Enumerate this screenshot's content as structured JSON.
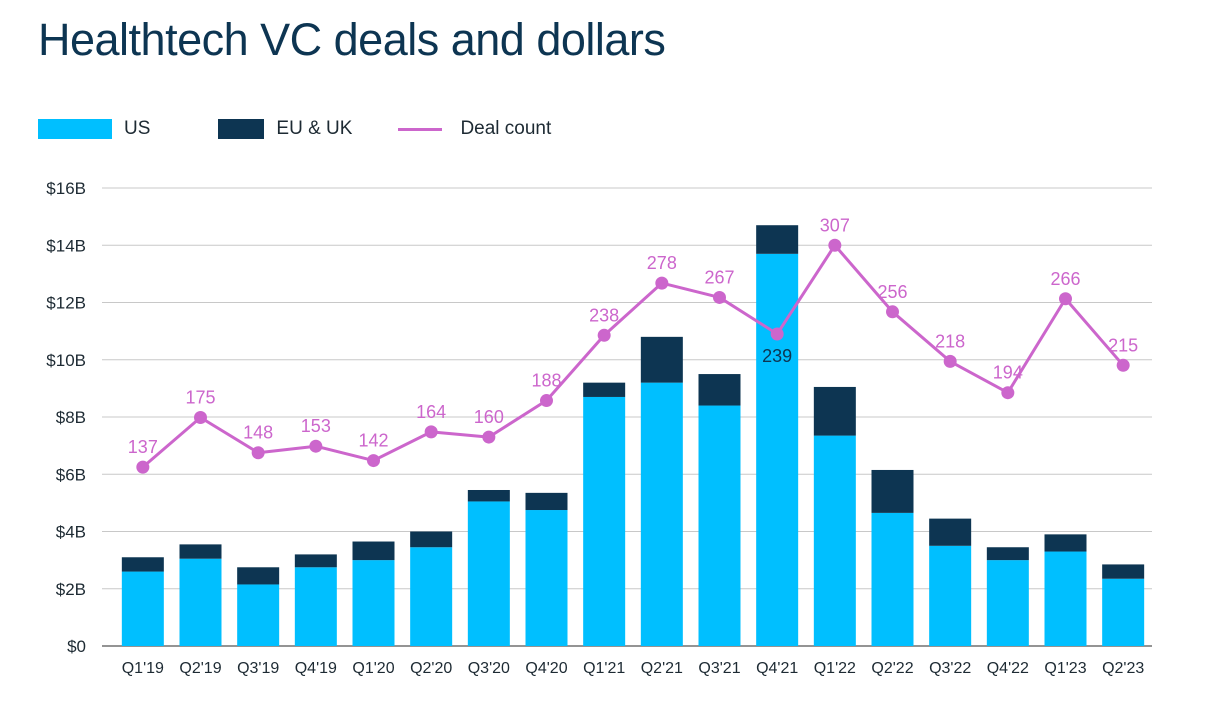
{
  "title": "Healthtech VC deals and dollars",
  "colors": {
    "us": "#00bfff",
    "eu_uk": "#0d3552",
    "deal_count": "#cc66cc",
    "grid": "#c8c8c8",
    "axis_text": "#1d2a33"
  },
  "legend": [
    {
      "label": "US",
      "type": "box",
      "color_key": "us"
    },
    {
      "label": "EU & UK",
      "type": "box",
      "color_key": "eu_uk"
    },
    {
      "label": "Deal count",
      "type": "line",
      "color_key": "deal_count"
    }
  ],
  "chart_data": {
    "type": "bar",
    "title": "Healthtech VC deals and dollars",
    "categories": [
      "Q1'19",
      "Q2'19",
      "Q3'19",
      "Q4'19",
      "Q1'20",
      "Q2'20",
      "Q3'20",
      "Q4'20",
      "Q1'21",
      "Q2'21",
      "Q3'21",
      "Q4'21",
      "Q1'22",
      "Q2'22",
      "Q3'22",
      "Q4'22",
      "Q1'23",
      "Q2'23"
    ],
    "series": [
      {
        "name": "US",
        "kind": "stacked-bar",
        "unit": "$B",
        "values": [
          2.6,
          3.05,
          2.15,
          2.75,
          3.0,
          3.45,
          5.05,
          4.75,
          8.7,
          9.2,
          8.4,
          13.7,
          7.35,
          4.65,
          3.5,
          3.0,
          3.3,
          2.35
        ]
      },
      {
        "name": "EU & UK",
        "kind": "stacked-bar",
        "unit": "$B",
        "values": [
          0.5,
          0.5,
          0.6,
          0.45,
          0.65,
          0.55,
          0.4,
          0.6,
          0.5,
          1.6,
          1.1,
          1.0,
          1.7,
          1.5,
          0.95,
          0.45,
          0.6,
          0.5
        ]
      },
      {
        "name": "Deal count",
        "kind": "line",
        "axis": "secondary",
        "values": [
          137,
          175,
          148,
          153,
          142,
          164,
          160,
          188,
          238,
          278,
          267,
          239,
          307,
          256,
          218,
          194,
          266,
          215
        ]
      }
    ],
    "y_axis": {
      "min": 0,
      "max": 16,
      "step": 2,
      "ticks": [
        "$0",
        "$2B",
        "$4B",
        "$6B",
        "$8B",
        "$10B",
        "$12B",
        "$14B",
        "$16B"
      ]
    },
    "grid": true,
    "legend_position": "top-left"
  }
}
